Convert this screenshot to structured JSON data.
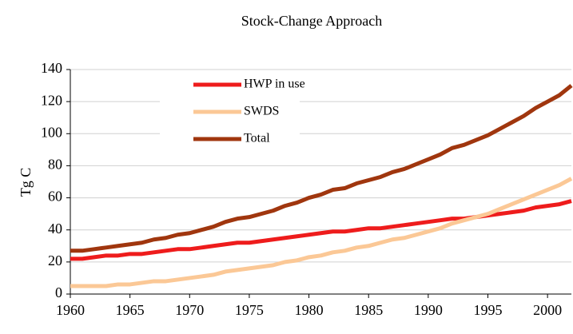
{
  "chart_data": {
    "type": "line",
    "title": "Stock-Change Approach",
    "y_label": "Tg C",
    "x": [
      1960,
      1961,
      1962,
      1963,
      1964,
      1965,
      1966,
      1967,
      1968,
      1969,
      1970,
      1971,
      1972,
      1973,
      1974,
      1975,
      1976,
      1977,
      1978,
      1979,
      1980,
      1981,
      1982,
      1983,
      1984,
      1985,
      1986,
      1987,
      1988,
      1989,
      1990,
      1991,
      1992,
      1993,
      1994,
      1995,
      1996,
      1997,
      1998,
      1999,
      2000,
      2001,
      2002
    ],
    "series": [
      {
        "name": "HWP in use",
        "color": "#ee1c1c",
        "values": [
          22,
          22,
          23,
          24,
          24,
          25,
          25,
          26,
          27,
          28,
          28,
          29,
          30,
          31,
          32,
          32,
          33,
          34,
          35,
          36,
          37,
          38,
          39,
          39,
          40,
          41,
          41,
          42,
          43,
          44,
          45,
          46,
          47,
          47,
          48,
          49,
          50,
          51,
          52,
          54,
          55,
          56,
          58
        ]
      },
      {
        "name": "SWDS",
        "color": "#fbc896",
        "values": [
          5,
          5,
          5,
          5,
          6,
          6,
          7,
          8,
          8,
          9,
          10,
          11,
          12,
          14,
          15,
          16,
          17,
          18,
          20,
          21,
          23,
          24,
          26,
          27,
          29,
          30,
          32,
          34,
          35,
          37,
          39,
          41,
          44,
          46,
          48,
          50,
          53,
          56,
          59,
          62,
          65,
          68,
          72
        ]
      },
      {
        "name": "Total",
        "color": "#a0360e",
        "values": [
          27,
          27,
          28,
          29,
          30,
          31,
          32,
          34,
          35,
          37,
          38,
          40,
          42,
          45,
          47,
          48,
          50,
          52,
          55,
          57,
          60,
          62,
          65,
          66,
          69,
          71,
          73,
          76,
          78,
          81,
          84,
          87,
          91,
          93,
          96,
          99,
          103,
          107,
          111,
          116,
          120,
          124,
          130
        ]
      }
    ],
    "xlim": [
      1960,
      2002
    ],
    "xticks": [
      1960,
      1965,
      1970,
      1975,
      1980,
      1985,
      1990,
      1995,
      2000
    ],
    "ylim": [
      0,
      140
    ],
    "yticks": [
      0,
      20,
      40,
      60,
      80,
      100,
      120,
      140
    ],
    "grid": true
  }
}
